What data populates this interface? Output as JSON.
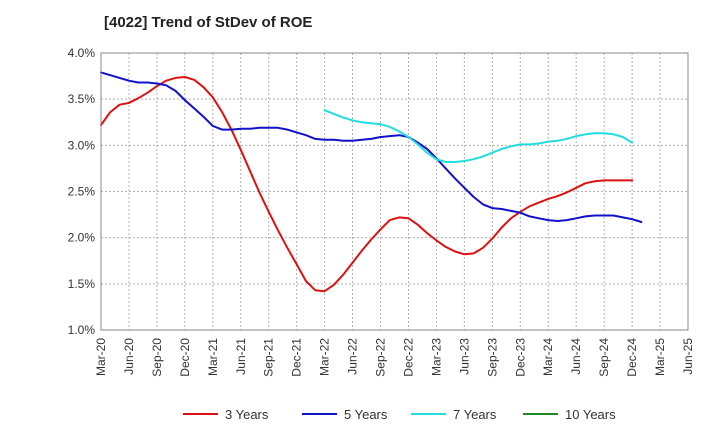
{
  "chart_data": {
    "type": "line",
    "title": "[4022]  Trend of StDev of ROE",
    "xlabel": "",
    "ylabel": "",
    "ylim": [
      1.0,
      4.0
    ],
    "yticks": [
      1.0,
      1.5,
      2.0,
      2.5,
      3.0,
      3.5,
      4.0
    ],
    "ytick_labels": [
      "1.0%",
      "1.5%",
      "2.0%",
      "2.5%",
      "3.0%",
      "3.5%",
      "4.0%"
    ],
    "x_categories": [
      "Mar-20",
      "Jun-20",
      "Sep-20",
      "Dec-20",
      "Mar-21",
      "Jun-21",
      "Sep-21",
      "Dec-21",
      "Mar-22",
      "Jun-22",
      "Sep-22",
      "Dec-22",
      "Mar-23",
      "Jun-23",
      "Sep-23",
      "Dec-23",
      "Mar-24",
      "Jun-24",
      "Sep-24",
      "Dec-24",
      "Mar-25",
      "Jun-25"
    ],
    "grid": true,
    "legend_position": "bottom",
    "series": [
      {
        "name": "3 Years",
        "color": "#dd1111",
        "start_index": 0,
        "values": [
          3.22,
          3.36,
          3.44,
          3.46,
          3.51,
          3.57,
          3.64,
          3.7,
          3.73,
          3.74,
          3.71,
          3.63,
          3.52,
          3.36,
          3.17,
          2.95,
          2.72,
          2.49,
          2.28,
          2.08,
          1.89,
          1.71,
          1.53,
          1.43,
          1.42,
          1.49,
          1.6,
          1.73,
          1.86,
          1.98,
          2.09,
          2.19,
          2.22,
          2.21,
          2.14,
          2.05,
          1.97,
          1.9,
          1.85,
          1.82,
          1.83,
          1.89,
          1.99,
          2.11,
          2.21,
          2.28,
          2.34,
          2.38,
          2.42,
          2.45,
          2.49,
          2.54,
          2.59,
          2.61,
          2.62,
          2.62,
          2.62,
          2.62
        ]
      },
      {
        "name": "5 Years",
        "color": "#1111cc",
        "start_index": 0,
        "values": [
          3.79,
          3.76,
          3.73,
          3.7,
          3.68,
          3.68,
          3.67,
          3.65,
          3.59,
          3.49,
          3.4,
          3.31,
          3.21,
          3.17,
          3.17,
          3.18,
          3.18,
          3.19,
          3.19,
          3.19,
          3.17,
          3.14,
          3.11,
          3.07,
          3.06,
          3.06,
          3.05,
          3.05,
          3.06,
          3.07,
          3.09,
          3.1,
          3.11,
          3.09,
          3.03,
          2.96,
          2.86,
          2.75,
          2.64,
          2.54,
          2.44,
          2.36,
          2.32,
          2.31,
          2.29,
          2.27,
          2.23,
          2.21,
          2.19,
          2.18,
          2.19,
          2.21,
          2.23,
          2.24,
          2.24,
          2.24,
          2.22,
          2.2,
          2.17
        ]
      },
      {
        "name": "7 Years",
        "color": "#22dddd",
        "start_index": 24,
        "values": [
          3.38,
          3.34,
          3.3,
          3.27,
          3.25,
          3.24,
          3.23,
          3.2,
          3.15,
          3.09,
          3.01,
          2.92,
          2.85,
          2.82,
          2.82,
          2.83,
          2.85,
          2.88,
          2.92,
          2.96,
          2.99,
          3.01,
          3.01,
          3.02,
          3.04,
          3.05,
          3.07,
          3.1,
          3.12,
          3.13,
          3.13,
          3.12,
          3.09,
          3.03
        ]
      },
      {
        "name": "10 Years",
        "color": "#228822",
        "start_index": 0,
        "values": []
      }
    ]
  }
}
